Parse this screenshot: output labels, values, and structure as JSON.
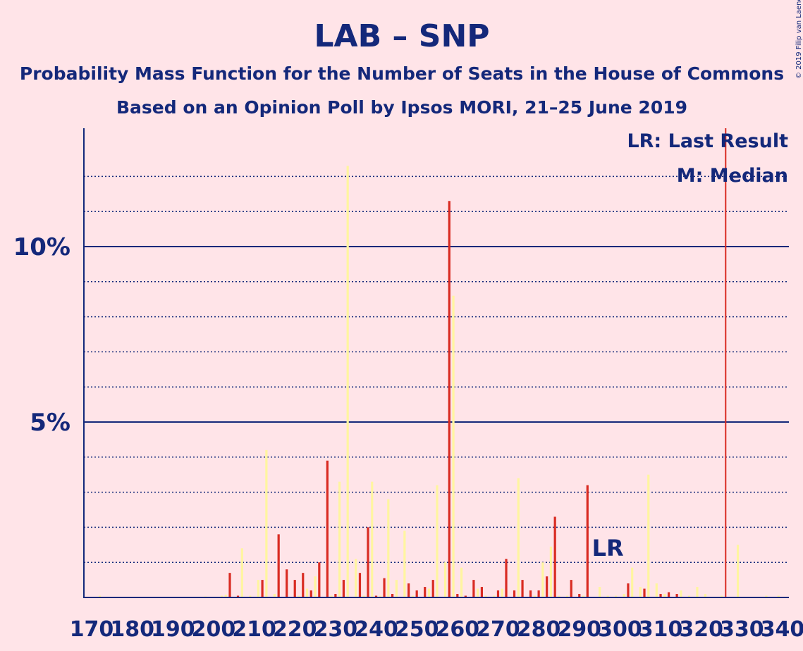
{
  "title": "LAB – SNP",
  "subtitle1": "Probability Mass Function for the Number of Seats in the House of Commons",
  "subtitle2": "Based on an Opinion Poll by Ipsos MORI, 21–25 June 2019",
  "copyright": "© 2019 Filip van Laenen",
  "legend": {
    "lr": "LR: Last Result",
    "m": "M: Median"
  },
  "lr_marker": "LR",
  "colors": {
    "background": "#ffe4e8",
    "text": "#14287a",
    "bar_red": "#d92b22",
    "bar_yellow": "#fff5a0",
    "last_result_line": "#d92b22"
  },
  "chart_data": {
    "type": "bar",
    "xlim": [
      170,
      340
    ],
    "ylim": [
      0,
      13.5
    ],
    "x_ticks": [
      "170",
      "180",
      "190",
      "200",
      "210",
      "220",
      "230",
      "240",
      "250",
      "260",
      "270",
      "280",
      "290",
      "300",
      "310",
      "320",
      "330",
      "340"
    ],
    "y_ticks": [
      {
        "value": 5,
        "label": "5%"
      },
      {
        "value": 10,
        "label": "10%"
      }
    ],
    "grid": "dotted every 1%, solid at 5% and 10%",
    "last_result": 326,
    "median": 258,
    "series": [
      {
        "color": "red",
        "points": [
          [
            204,
            0.7
          ],
          [
            206,
            0.05
          ],
          [
            212,
            0.5
          ],
          [
            216,
            1.8
          ],
          [
            218,
            0.8
          ],
          [
            220,
            0.5
          ],
          [
            222,
            0.7
          ],
          [
            224,
            0.2
          ],
          [
            226,
            1.0
          ],
          [
            228,
            3.9
          ],
          [
            230,
            0.1
          ],
          [
            232,
            0.5
          ],
          [
            236,
            0.7
          ],
          [
            238,
            2.0
          ],
          [
            240,
            0.05
          ],
          [
            242,
            0.55
          ],
          [
            244,
            0.1
          ],
          [
            248,
            0.4
          ],
          [
            250,
            0.2
          ],
          [
            252,
            0.3
          ],
          [
            254,
            0.5
          ],
          [
            258,
            11.3
          ],
          [
            260,
            0.1
          ],
          [
            262,
            0.05
          ],
          [
            264,
            0.5
          ],
          [
            266,
            0.3
          ],
          [
            270,
            0.2
          ],
          [
            272,
            1.1
          ],
          [
            274,
            0.2
          ],
          [
            276,
            0.5
          ],
          [
            278,
            0.2
          ],
          [
            280,
            0.2
          ],
          [
            282,
            0.6
          ],
          [
            284,
            2.3
          ],
          [
            288,
            0.5
          ],
          [
            290,
            0.1
          ],
          [
            292,
            3.2
          ],
          [
            302,
            0.4
          ],
          [
            306,
            0.25
          ],
          [
            310,
            0.1
          ],
          [
            312,
            0.15
          ],
          [
            314,
            0.1
          ]
        ]
      },
      {
        "color": "yellow",
        "points": [
          [
            172,
            0.05
          ],
          [
            186,
            0.02
          ],
          [
            198,
            0.03
          ],
          [
            202,
            0.05
          ],
          [
            203,
            0.08
          ],
          [
            207,
            1.4
          ],
          [
            209,
            0.05
          ],
          [
            211,
            0.5
          ],
          [
            213,
            4.2
          ],
          [
            215,
            0.1
          ],
          [
            221,
            0.05
          ],
          [
            223,
            0.25
          ],
          [
            225,
            0.6
          ],
          [
            229,
            0.05
          ],
          [
            231,
            3.3
          ],
          [
            233,
            12.3
          ],
          [
            235,
            1.1
          ],
          [
            237,
            0.05
          ],
          [
            239,
            3.3
          ],
          [
            241,
            0.05
          ],
          [
            243,
            2.8
          ],
          [
            245,
            0.5
          ],
          [
            247,
            1.9
          ],
          [
            249,
            0.05
          ],
          [
            253,
            0.25
          ],
          [
            255,
            3.2
          ],
          [
            257,
            1.0
          ],
          [
            259,
            8.6
          ],
          [
            261,
            0.85
          ],
          [
            265,
            0.25
          ],
          [
            267,
            0.05
          ],
          [
            269,
            0.05
          ],
          [
            271,
            0.25
          ],
          [
            275,
            3.4
          ],
          [
            279,
            0.05
          ],
          [
            281,
            1.0
          ],
          [
            283,
            1.45
          ],
          [
            285,
            0.05
          ],
          [
            287,
            0.05
          ],
          [
            291,
            0.05
          ],
          [
            295,
            0.3
          ],
          [
            297,
            0.05
          ],
          [
            299,
            0.05
          ],
          [
            301,
            0.1
          ],
          [
            303,
            0.85
          ],
          [
            305,
            0.3
          ],
          [
            307,
            3.5
          ],
          [
            309,
            0.4
          ],
          [
            311,
            0.1
          ],
          [
            315,
            0.2
          ],
          [
            317,
            0.05
          ],
          [
            319,
            0.3
          ],
          [
            321,
            0.1
          ],
          [
            325,
            0.05
          ],
          [
            329,
            1.5
          ],
          [
            333,
            0.02
          ],
          [
            336,
            0.05
          ],
          [
            339,
            0.05
          ]
        ]
      }
    ]
  }
}
